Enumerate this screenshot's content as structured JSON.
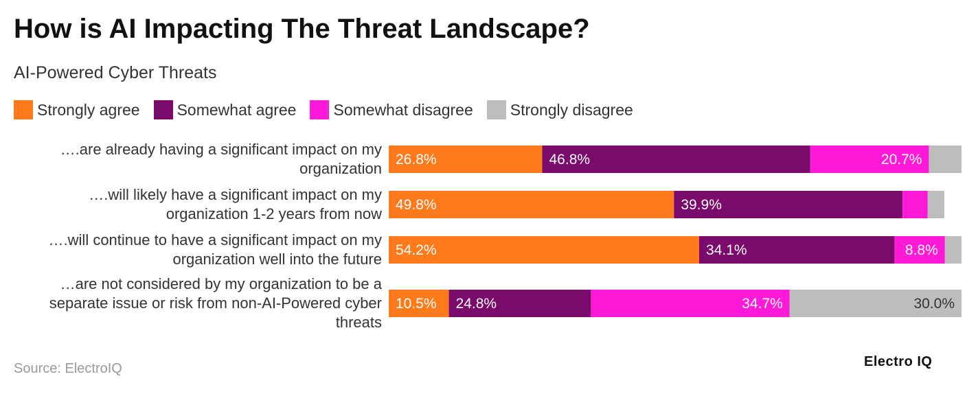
{
  "chart_data": {
    "type": "bar",
    "orientation": "horizontal",
    "stacked": true,
    "title": "How is AI Impacting The Threat Landscape?",
    "subtitle": "AI-Powered Cyber Threats",
    "categories": [
      "….are already having a significant impact on my organization",
      "….will likely have a significant impact on my organization 1-2 years from now",
      "….will continue to have a significant impact on my organization well into the future",
      "…are not considered by my organization to be a separate issue or risk from non-AI-Powered cyber threats"
    ],
    "series": [
      {
        "name": "Strongly agree",
        "color": "#FF7A1A",
        "values": [
          26.8,
          49.8,
          54.2,
          10.5
        ],
        "labels": [
          "26.8%",
          "49.8%",
          "54.2%",
          "10.5%"
        ]
      },
      {
        "name": "Somewhat agree",
        "color": "#7A0A6B",
        "values": [
          46.8,
          39.9,
          34.1,
          24.8
        ],
        "labels": [
          "46.8%",
          "39.9%",
          "34.1%",
          "24.8%"
        ]
      },
      {
        "name": "Somewhat disagree",
        "color": "#FF1AD9",
        "values": [
          20.7,
          4.4,
          8.8,
          34.7
        ],
        "labels": [
          "20.7%",
          "",
          "8.8%",
          "34.7%"
        ]
      },
      {
        "name": "Strongly disagree",
        "color": "#BDBDBD",
        "values": [
          5.7,
          2.9,
          2.9,
          30.0
        ],
        "labels": [
          "",
          "",
          "",
          "30.0%"
        ]
      }
    ],
    "xlim": [
      0,
      100
    ],
    "legend_position": "top-left"
  },
  "legend": [
    {
      "label": "Strongly agree",
      "color": "#FF7A1A"
    },
    {
      "label": "Somewhat agree",
      "color": "#7A0A6B"
    },
    {
      "label": "Somewhat disagree",
      "color": "#FF1AD9"
    },
    {
      "label": "Strongly disagree",
      "color": "#BDBDBD"
    }
  ],
  "source": "Source: ElectroIQ",
  "logo_text": "Electro IQ"
}
